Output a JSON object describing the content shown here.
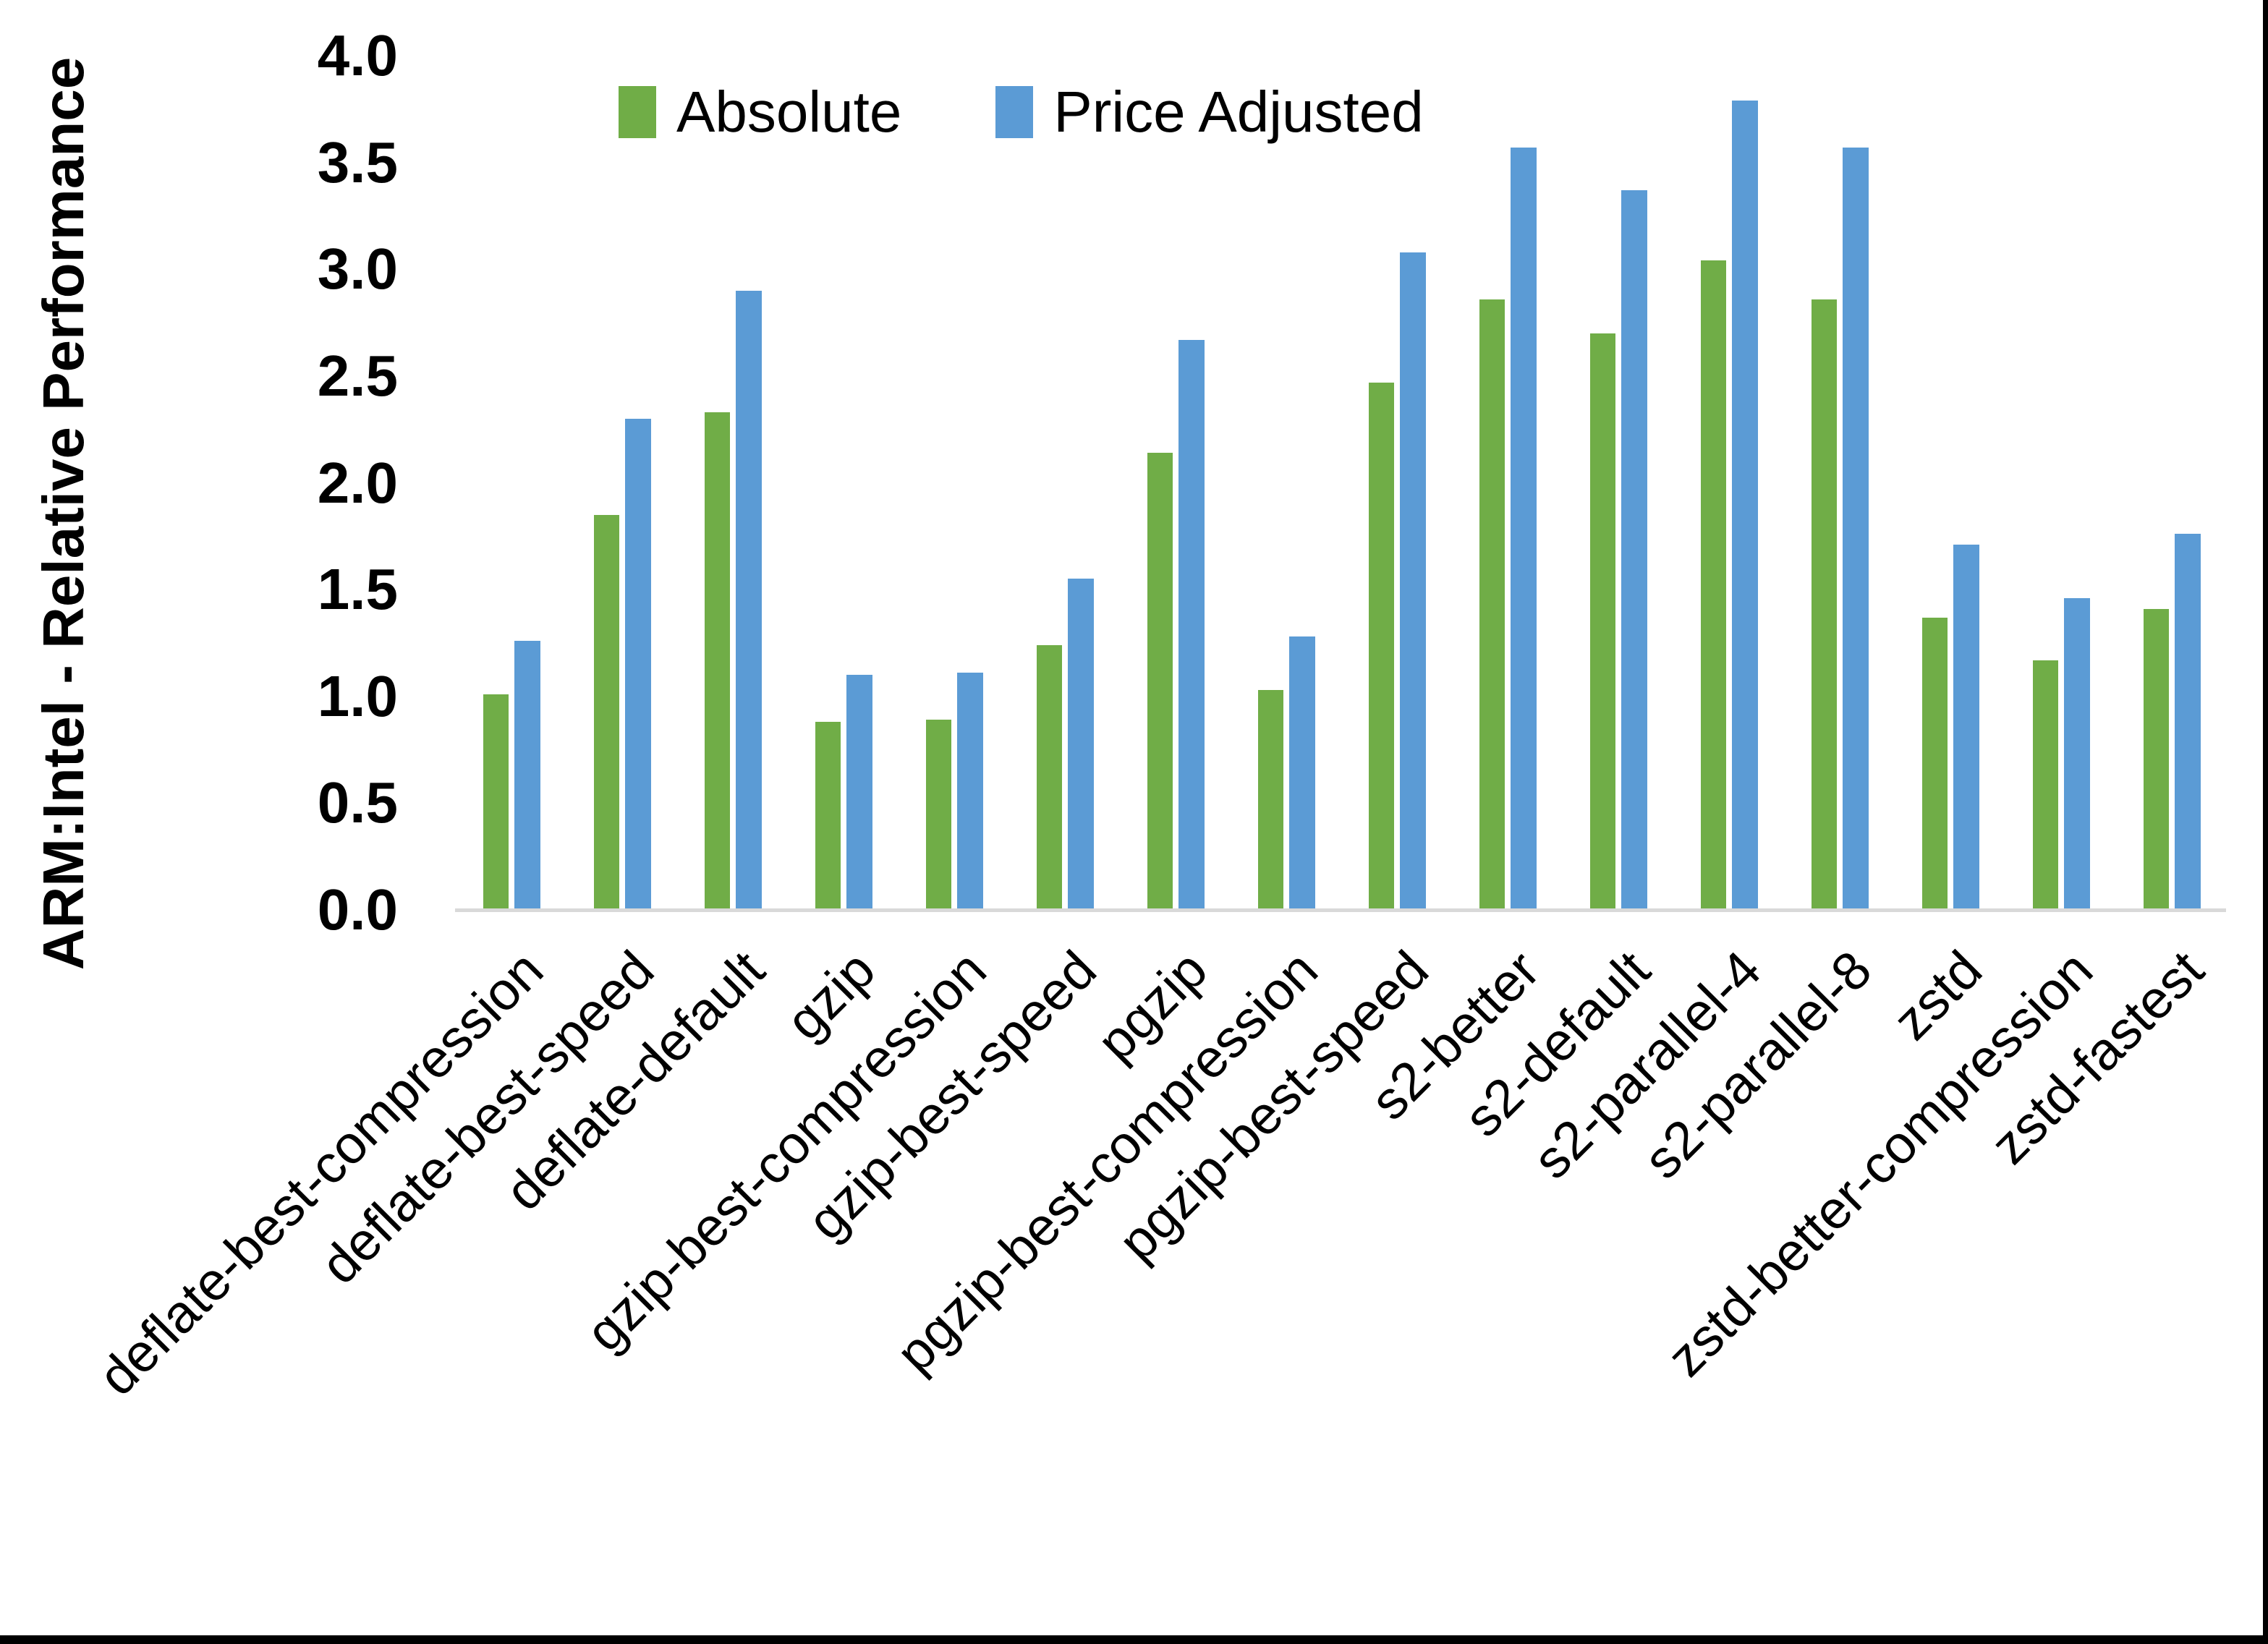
{
  "window": {
    "background": "#ffffff",
    "frame_color": "#000000"
  },
  "chart_data": {
    "type": "bar",
    "title": "",
    "xlabel": "",
    "ylabel": "ARM:Intel - Relative Performance",
    "ylim": [
      0.0,
      4.0
    ],
    "ytick_step": 0.5,
    "ytick_labels": [
      "0.0",
      "0.5",
      "1.0",
      "1.5",
      "2.0",
      "2.5",
      "3.0",
      "3.5",
      "4.0"
    ],
    "grid": false,
    "legend_position": "top-center",
    "axis_line_color": "#d9d9d9",
    "text_color": "#000000",
    "categories": [
      "deflate-best-compression",
      "deflate-best-speed",
      "deflate-default",
      "gzip",
      "gzip-best-compression",
      "gzip-best-speed",
      "pgzip",
      "pgzip-best-compression",
      "pgzip-best-speed",
      "s2-better",
      "s2-default",
      "s2-parallel-4",
      "s2-parallel-8",
      "zstd",
      "zstd-better-compression",
      "zstd-fastest"
    ],
    "series": [
      {
        "name": "Absolute",
        "color": "#70AD47",
        "values": [
          1.01,
          1.85,
          2.33,
          0.88,
          0.89,
          1.24,
          2.14,
          1.03,
          2.47,
          2.86,
          2.7,
          3.04,
          2.86,
          1.37,
          1.17,
          1.41
        ]
      },
      {
        "name": "Price Adjusted",
        "color": "#5B9BD5",
        "values": [
          1.26,
          2.3,
          2.9,
          1.1,
          1.11,
          1.55,
          2.67,
          1.28,
          3.08,
          3.57,
          3.37,
          3.79,
          3.57,
          1.71,
          1.46,
          1.76
        ]
      }
    ]
  }
}
